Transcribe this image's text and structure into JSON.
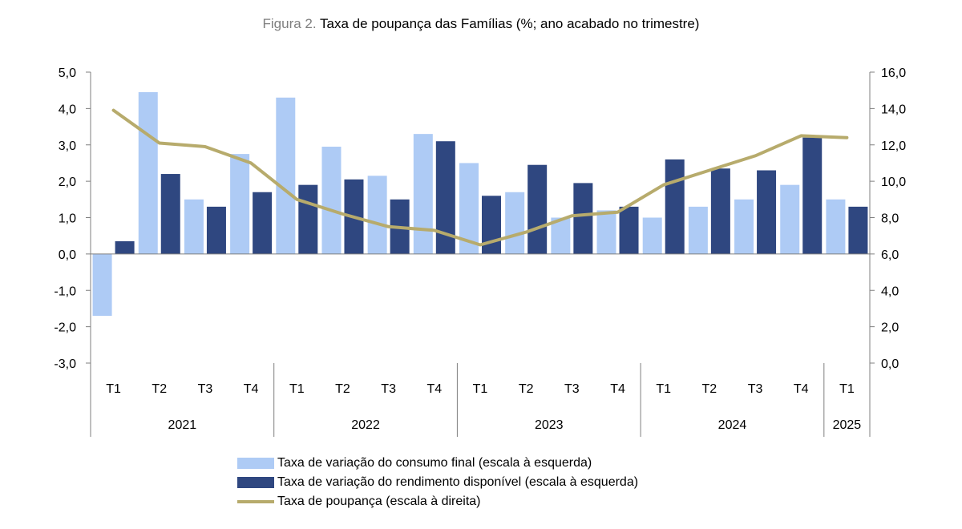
{
  "figure": {
    "prefix": "Figura 2.",
    "title": "Taxa de poupança das Famílias (%; ano acabado no trimestre)"
  },
  "colors": {
    "consumo": "#aecbf5",
    "rendimento": "#2f4780",
    "poupanca": "#b7ab6c",
    "axis": "#7f7f7f"
  },
  "chart_data": {
    "type": "bar+line",
    "title": "Taxa de poupança das Famílias (%; ano acabado no trimestre)",
    "categories": [
      "T1",
      "T2",
      "T3",
      "T4",
      "T1",
      "T2",
      "T3",
      "T4",
      "T1",
      "T2",
      "T3",
      "T4",
      "T1",
      "T2",
      "T3",
      "T4",
      "T1"
    ],
    "year_groups": [
      {
        "label": "2021",
        "count": 4
      },
      {
        "label": "2022",
        "count": 4
      },
      {
        "label": "2023",
        "count": 4
      },
      {
        "label": "2024",
        "count": 4
      },
      {
        "label": "2025",
        "count": 1
      }
    ],
    "left_axis": {
      "ylim": [
        -3.0,
        5.0
      ],
      "ticks": [
        "5,0",
        "4,0",
        "3,0",
        "2,0",
        "1,0",
        "0,0",
        "-1,0",
        "-2,0",
        "-3,0"
      ]
    },
    "right_axis": {
      "ylim": [
        0.0,
        16.0
      ],
      "ticks": [
        "16,0",
        "14,0",
        "12,0",
        "10,0",
        "8,0",
        "6,0",
        "4,0",
        "2,0",
        "0,0"
      ]
    },
    "series": [
      {
        "name": "Taxa de variação do consumo final (escala à esquerda)",
        "kind": "bar",
        "axis": "left",
        "values": [
          -1.7,
          4.45,
          1.5,
          2.75,
          4.3,
          2.95,
          2.15,
          3.3,
          2.5,
          1.7,
          1.0,
          1.2,
          1.0,
          1.3,
          1.5,
          1.9,
          1.5
        ]
      },
      {
        "name": "Taxa de variação do rendimento disponível (escala à esquerda)",
        "kind": "bar",
        "axis": "left",
        "values": [
          0.35,
          2.2,
          1.3,
          1.7,
          1.9,
          2.05,
          1.5,
          3.1,
          1.6,
          2.45,
          1.95,
          1.3,
          2.6,
          2.35,
          2.3,
          3.2,
          1.3
        ]
      },
      {
        "name": "Taxa de poupança (escala à direita)",
        "kind": "line",
        "axis": "right",
        "values": [
          13.9,
          12.1,
          11.9,
          11.0,
          9.0,
          8.2,
          7.5,
          7.3,
          6.5,
          7.2,
          8.1,
          8.3,
          9.8,
          10.6,
          11.4,
          12.5,
          12.4
        ]
      }
    ]
  }
}
